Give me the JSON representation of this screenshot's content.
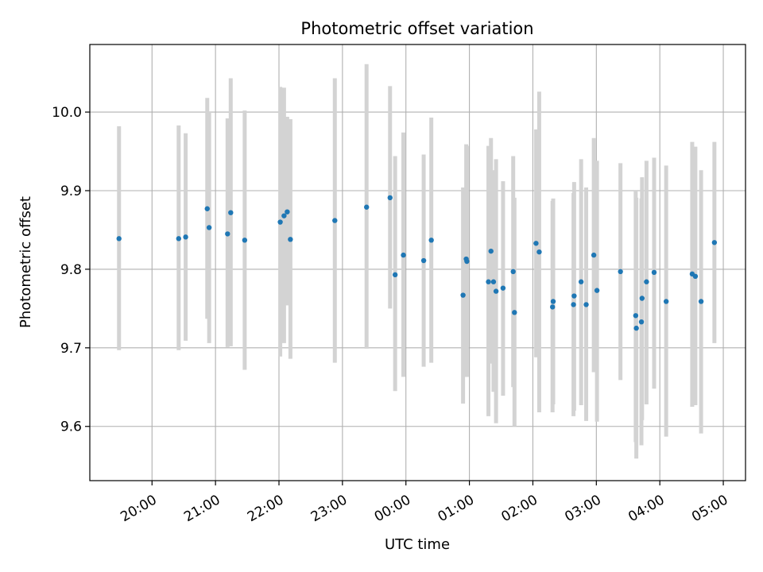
{
  "chart_data": {
    "type": "scatter",
    "title": "Photometric offset variation",
    "xlabel": "UTC time",
    "ylabel": "Photometric offset",
    "x_unit": "hours since 00:00 UTC (negative = previous day)",
    "xlim": [
      -4.98,
      5.35
    ],
    "ylim": [
      9.531,
      10.086
    ],
    "grid": true,
    "x_ticks": [
      {
        "value": -4,
        "label": "20:00"
      },
      {
        "value": -3,
        "label": "21:00"
      },
      {
        "value": -2,
        "label": "22:00"
      },
      {
        "value": -1,
        "label": "23:00"
      },
      {
        "value": 0,
        "label": "00:00"
      },
      {
        "value": 1,
        "label": "01:00"
      },
      {
        "value": 2,
        "label": "02:00"
      },
      {
        "value": 3,
        "label": "03:00"
      },
      {
        "value": 4,
        "label": "04:00"
      },
      {
        "value": 5,
        "label": "05:00"
      }
    ],
    "y_ticks": [
      {
        "value": 9.6,
        "label": "9.6"
      },
      {
        "value": 9.7,
        "label": "9.7"
      },
      {
        "value": 9.8,
        "label": "9.8"
      },
      {
        "value": 9.9,
        "label": "9.9"
      },
      {
        "value": 10.0,
        "label": "10.0"
      }
    ],
    "series": [
      {
        "name": "offset",
        "point_color": "#1f77b4",
        "errorbar_color": "#d3d3d3",
        "points": [
          {
            "x": -4.52,
            "y": 9.839,
            "ylow": 9.697,
            "yhigh": 9.982
          },
          {
            "x": -3.58,
            "y": 9.839,
            "ylow": 9.697,
            "yhigh": 9.983
          },
          {
            "x": -3.47,
            "y": 9.841,
            "ylow": 9.709,
            "yhigh": 9.973
          },
          {
            "x": -3.13,
            "y": 9.877,
            "ylow": 9.737,
            "yhigh": 10.018
          },
          {
            "x": -3.1,
            "y": 9.853,
            "ylow": 9.706,
            "yhigh": 10.001
          },
          {
            "x": -2.81,
            "y": 9.845,
            "ylow": 9.701,
            "yhigh": 9.992
          },
          {
            "x": -2.76,
            "y": 9.872,
            "ylow": 9.702,
            "yhigh": 10.043
          },
          {
            "x": -2.54,
            "y": 9.837,
            "ylow": 9.672,
            "yhigh": 10.002
          },
          {
            "x": -1.98,
            "y": 9.86,
            "ylow": 9.689,
            "yhigh": 10.032
          },
          {
            "x": -1.92,
            "y": 9.868,
            "ylow": 9.706,
            "yhigh": 10.031
          },
          {
            "x": -1.87,
            "y": 9.873,
            "ylow": 9.754,
            "yhigh": 9.994
          },
          {
            "x": -1.82,
            "y": 9.838,
            "ylow": 9.686,
            "yhigh": 9.991
          },
          {
            "x": -1.12,
            "y": 9.862,
            "ylow": 9.681,
            "yhigh": 10.043
          },
          {
            "x": -0.62,
            "y": 9.879,
            "ylow": 9.699,
            "yhigh": 10.061
          },
          {
            "x": -0.25,
            "y": 9.891,
            "ylow": 9.75,
            "yhigh": 10.033
          },
          {
            "x": -0.17,
            "y": 9.793,
            "ylow": 9.645,
            "yhigh": 9.944
          },
          {
            "x": -0.04,
            "y": 9.818,
            "ylow": 9.663,
            "yhigh": 9.974
          },
          {
            "x": 0.28,
            "y": 9.811,
            "ylow": 9.676,
            "yhigh": 9.946
          },
          {
            "x": 0.4,
            "y": 9.837,
            "ylow": 9.681,
            "yhigh": 9.993
          },
          {
            "x": 0.9,
            "y": 9.767,
            "ylow": 9.629,
            "yhigh": 9.904
          },
          {
            "x": 0.95,
            "y": 9.813,
            "ylow": 9.663,
            "yhigh": 9.959
          },
          {
            "x": 0.96,
            "y": 9.81,
            "ylow": 9.663,
            "yhigh": 9.957
          },
          {
            "x": 1.3,
            "y": 9.784,
            "ylow": 9.613,
            "yhigh": 9.957
          },
          {
            "x": 1.34,
            "y": 9.823,
            "ylow": 9.68,
            "yhigh": 9.967
          },
          {
            "x": 1.38,
            "y": 9.784,
            "ylow": 9.644,
            "yhigh": 9.926
          },
          {
            "x": 1.42,
            "y": 9.772,
            "ylow": 9.604,
            "yhigh": 9.94
          },
          {
            "x": 1.53,
            "y": 9.776,
            "ylow": 9.639,
            "yhigh": 9.912
          },
          {
            "x": 1.69,
            "y": 9.797,
            "ylow": 9.65,
            "yhigh": 9.944
          },
          {
            "x": 1.71,
            "y": 9.745,
            "ylow": 9.6,
            "yhigh": 9.891
          },
          {
            "x": 2.05,
            "y": 9.833,
            "ylow": 9.688,
            "yhigh": 9.978
          },
          {
            "x": 2.1,
            "y": 9.822,
            "ylow": 9.618,
            "yhigh": 10.026
          },
          {
            "x": 2.31,
            "y": 9.752,
            "ylow": 9.618,
            "yhigh": 9.887
          },
          {
            "x": 2.32,
            "y": 9.759,
            "ylow": 9.628,
            "yhigh": 9.89
          },
          {
            "x": 2.64,
            "y": 9.755,
            "ylow": 9.613,
            "yhigh": 9.897
          },
          {
            "x": 2.65,
            "y": 9.766,
            "ylow": 9.62,
            "yhigh": 9.911
          },
          {
            "x": 2.76,
            "y": 9.784,
            "ylow": 9.627,
            "yhigh": 9.94
          },
          {
            "x": 2.84,
            "y": 9.755,
            "ylow": 9.607,
            "yhigh": 9.904
          },
          {
            "x": 2.96,
            "y": 9.818,
            "ylow": 9.669,
            "yhigh": 9.967
          },
          {
            "x": 3.01,
            "y": 9.773,
            "ylow": 9.606,
            "yhigh": 9.938
          },
          {
            "x": 3.38,
            "y": 9.797,
            "ylow": 9.659,
            "yhigh": 9.935
          },
          {
            "x": 3.62,
            "y": 9.741,
            "ylow": 9.58,
            "yhigh": 9.9
          },
          {
            "x": 3.63,
            "y": 9.725,
            "ylow": 9.559,
            "yhigh": 9.891
          },
          {
            "x": 3.71,
            "y": 9.733,
            "ylow": 9.576,
            "yhigh": 9.89
          },
          {
            "x": 3.72,
            "y": 9.763,
            "ylow": 9.608,
            "yhigh": 9.917
          },
          {
            "x": 3.79,
            "y": 9.784,
            "ylow": 9.628,
            "yhigh": 9.938
          },
          {
            "x": 3.91,
            "y": 9.796,
            "ylow": 9.648,
            "yhigh": 9.942
          },
          {
            "x": 4.1,
            "y": 9.759,
            "ylow": 9.587,
            "yhigh": 9.932
          },
          {
            "x": 4.51,
            "y": 9.794,
            "ylow": 9.625,
            "yhigh": 9.962
          },
          {
            "x": 4.56,
            "y": 9.791,
            "ylow": 9.627,
            "yhigh": 9.956
          },
          {
            "x": 4.65,
            "y": 9.759,
            "ylow": 9.591,
            "yhigh": 9.926
          },
          {
            "x": 4.86,
            "y": 9.834,
            "ylow": 9.706,
            "yhigh": 9.962
          }
        ]
      }
    ]
  }
}
